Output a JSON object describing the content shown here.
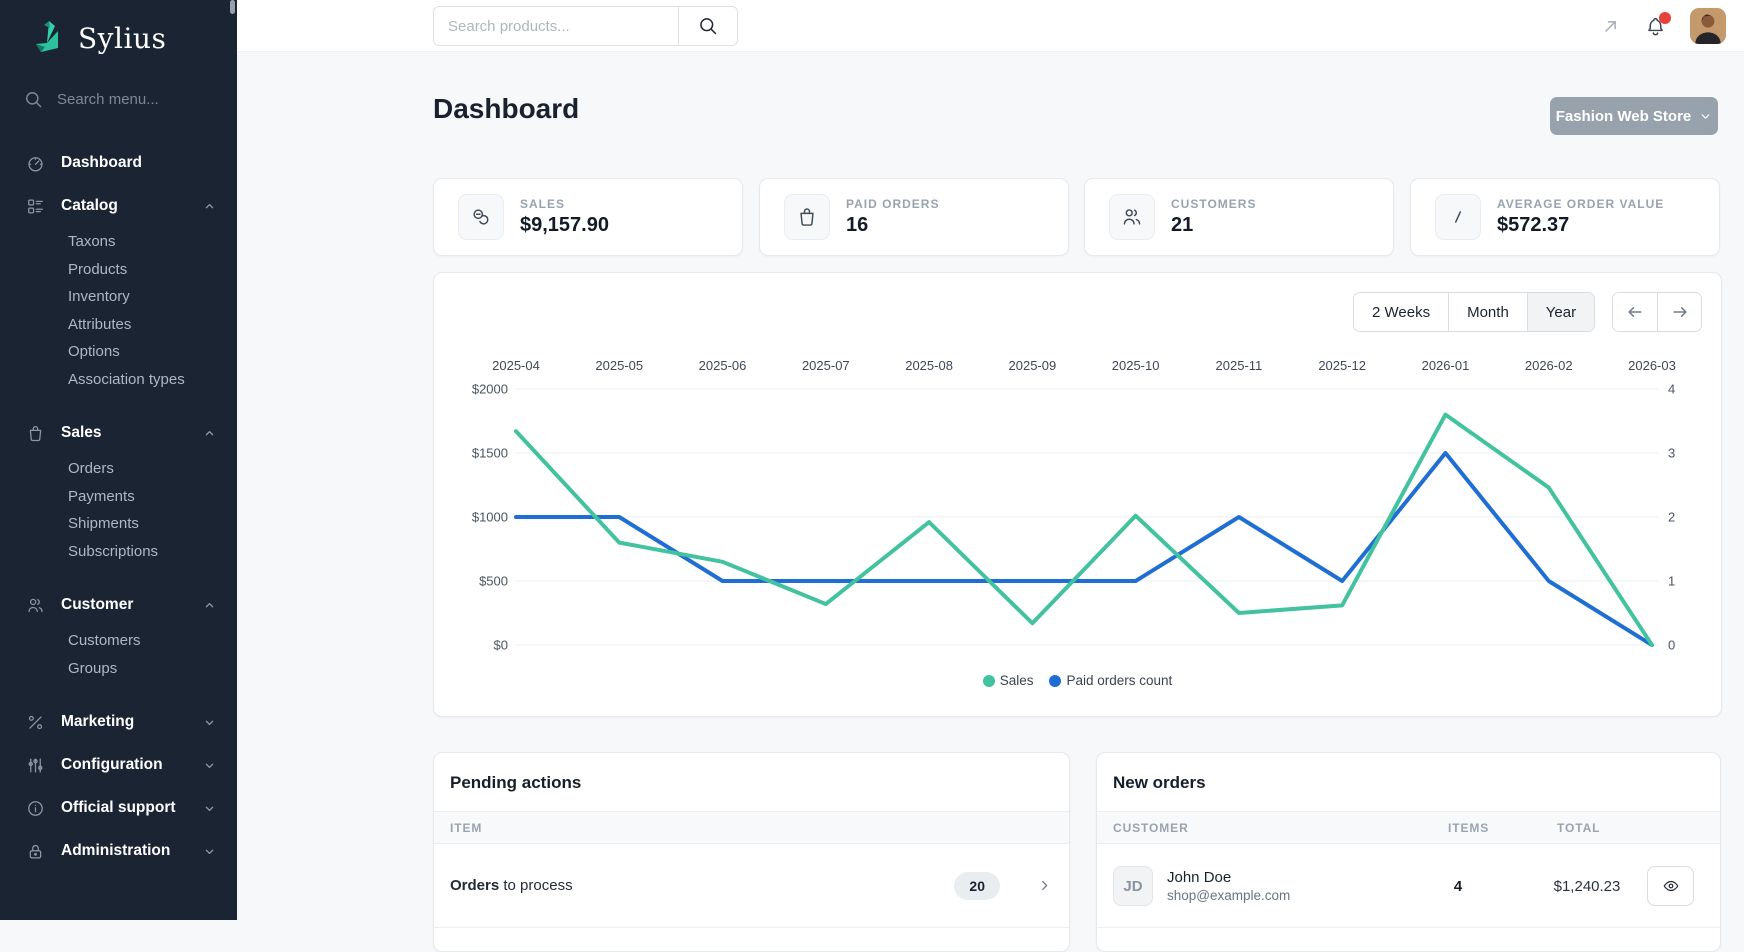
{
  "colors": {
    "sidebar_bg": "#1a2433",
    "brand_teal": "#35c3a0",
    "chart_sales_green": "#42c29e",
    "chart_orders_blue": "#1f6ed4",
    "notification_red": "#e8403a",
    "store_button_gray": "#98a2ac"
  },
  "sidebar": {
    "logo_text": "Sylius",
    "search_placeholder": "Search menu...",
    "sections": [
      {
        "label": "Dashboard",
        "icon": "gauge-icon",
        "chevron": null,
        "children": []
      },
      {
        "label": "Catalog",
        "icon": "list-details-icon",
        "chevron": "up",
        "children": [
          "Taxons",
          "Products",
          "Inventory",
          "Attributes",
          "Options",
          "Association types"
        ]
      },
      {
        "label": "Sales",
        "icon": "shopping-bag-icon",
        "chevron": "up",
        "children": [
          "Orders",
          "Payments",
          "Shipments",
          "Subscriptions"
        ]
      },
      {
        "label": "Customer",
        "icon": "users-icon",
        "chevron": "up",
        "children": [
          "Customers",
          "Groups"
        ]
      },
      {
        "label": "Marketing",
        "icon": "percent-icon",
        "chevron": "down",
        "children": []
      },
      {
        "label": "Configuration",
        "icon": "adjustments-icon",
        "chevron": "down",
        "children": []
      },
      {
        "label": "Official support",
        "icon": "info-circle-icon",
        "chevron": "down",
        "children": []
      },
      {
        "label": "Administration",
        "icon": "lock-icon",
        "chevron": "down",
        "children": []
      }
    ]
  },
  "topbar": {
    "search_placeholder": "Search products..."
  },
  "page": {
    "title": "Dashboard",
    "store_selector_label": "Fashion Web Store"
  },
  "stats": [
    {
      "label": "SALES",
      "value": "$9,157.90",
      "icon": "coins-icon"
    },
    {
      "label": "PAID ORDERS",
      "value": "16",
      "icon": "shopping-bag-icon"
    },
    {
      "label": "CUSTOMERS",
      "value": "21",
      "icon": "users-icon"
    },
    {
      "label": "AVERAGE ORDER VALUE",
      "value": "$572.37",
      "icon": "divide-icon"
    }
  ],
  "chart_controls": {
    "ranges": [
      "2 Weeks",
      "Month",
      "Year"
    ],
    "active_range": "Year",
    "prev_label": "previous-period",
    "next_label": "next-period"
  },
  "chart_data": {
    "type": "line",
    "x": [
      "2025-04",
      "2025-05",
      "2025-06",
      "2025-07",
      "2025-08",
      "2025-09",
      "2025-10",
      "2025-11",
      "2025-12",
      "2026-01",
      "2026-02",
      "2026-03"
    ],
    "series": [
      {
        "name": "Sales",
        "color": "#42c29e",
        "axis": "left",
        "values": [
          1670,
          800,
          650,
          320,
          960,
          170,
          1010,
          250,
          310,
          1800,
          1230,
          0
        ]
      },
      {
        "name": "Paid orders count",
        "color": "#1f6ed4",
        "axis": "right",
        "values": [
          2,
          2,
          1,
          1,
          1,
          1,
          1,
          2,
          1,
          3,
          1,
          0
        ]
      }
    ],
    "left_axis": {
      "min": 0,
      "max": 2000,
      "ticks": [
        "$2000",
        "$1500",
        "$1000",
        "$500",
        "$0"
      ]
    },
    "right_axis": {
      "min": 0,
      "max": 4,
      "ticks": [
        "4",
        "3",
        "2",
        "1",
        "0"
      ]
    },
    "grid": true,
    "legend_position": "bottom"
  },
  "pending_actions": {
    "title": "Pending actions",
    "columns": [
      "ITEM"
    ],
    "rows": [
      {
        "bold": "Orders",
        "rest": " to process",
        "count": "20"
      }
    ]
  },
  "new_orders": {
    "title": "New orders",
    "columns": [
      "CUSTOMER",
      "ITEMS",
      "TOTAL"
    ],
    "rows": [
      {
        "initials": "JD",
        "name": "John Doe",
        "email": "shop@example.com",
        "items": "4",
        "total": "$1,240.23"
      }
    ]
  }
}
